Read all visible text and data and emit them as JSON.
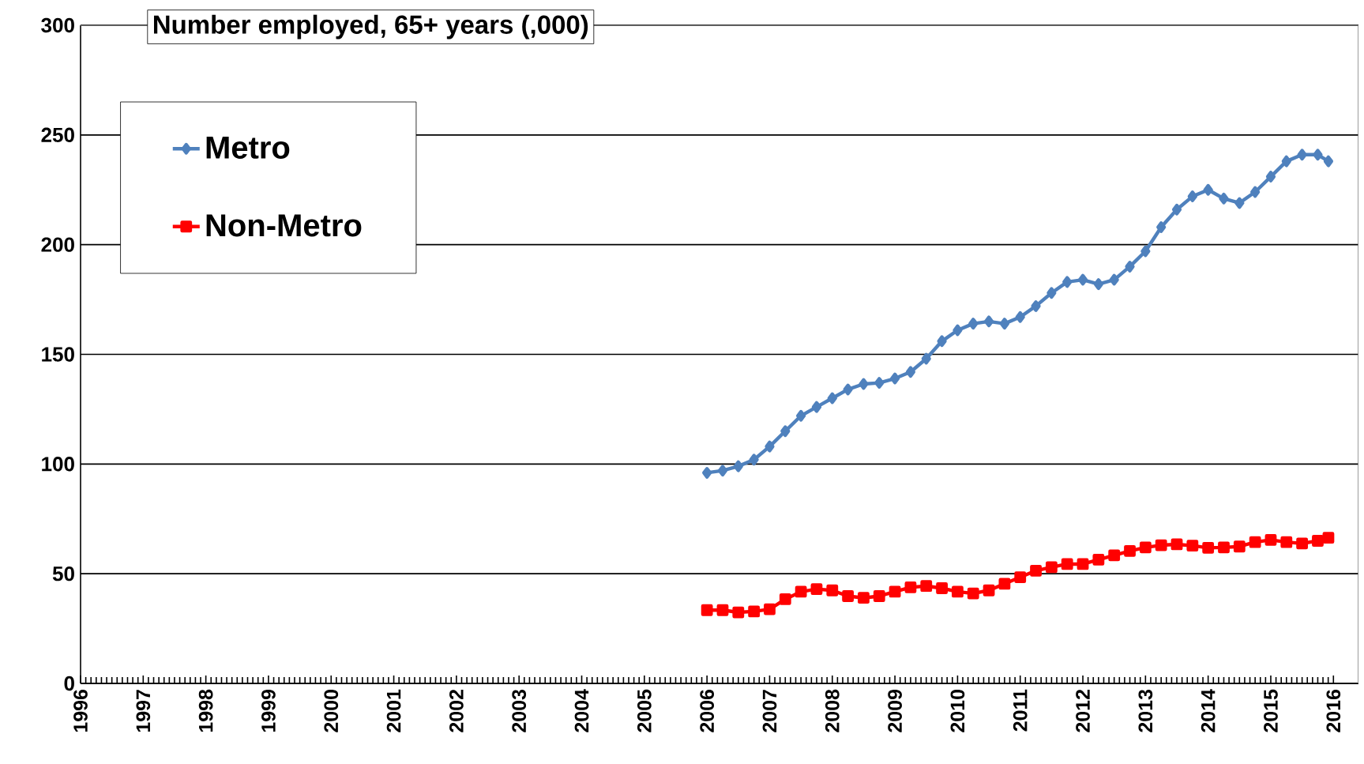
{
  "chart_data": {
    "type": "line",
    "title": "Number employed, 65+ years (,000)",
    "x": [
      2006.0,
      2006.25,
      2006.5,
      2006.75,
      2007.0,
      2007.25,
      2007.5,
      2007.75,
      2008.0,
      2008.25,
      2008.5,
      2008.75,
      2009.0,
      2009.25,
      2009.5,
      2009.75,
      2010.0,
      2010.25,
      2010.5,
      2010.75,
      2011.0,
      2011.25,
      2011.5,
      2011.75,
      2012.0,
      2012.25,
      2012.5,
      2012.75,
      2013.0,
      2013.25,
      2013.5,
      2013.75,
      2014.0,
      2014.25,
      2014.5,
      2014.75,
      2015.0,
      2015.25,
      2015.5,
      2015.75,
      2015.92
    ],
    "series": [
      {
        "name": "Metro",
        "color": "#4f81bd",
        "marker": "diamond",
        "values": [
          96,
          97,
          99,
          102,
          108,
          115,
          122,
          126,
          130,
          134,
          136.5,
          137,
          139,
          142,
          148,
          156,
          161,
          164,
          165,
          164,
          167,
          172,
          178,
          183,
          184,
          182,
          184,
          190,
          197,
          208,
          216,
          222,
          225,
          221,
          219,
          224,
          231,
          238,
          241,
          241,
          238
        ]
      },
      {
        "name": "Non-Metro",
        "color": "#ff0000",
        "marker": "square",
        "values": [
          33.4,
          33.4,
          32.4,
          32.8,
          33.8,
          38.4,
          41.8,
          43,
          42.4,
          39.8,
          39,
          39.8,
          41.8,
          43.8,
          44.4,
          43.4,
          41.8,
          41,
          42.4,
          45.4,
          48.4,
          51.4,
          53,
          54.4,
          54.4,
          56.4,
          58.4,
          60.4,
          62,
          63,
          63.4,
          62.8,
          61.8,
          62,
          62.4,
          64.4,
          65.4,
          64.4,
          63.8,
          65,
          66.4
        ]
      }
    ],
    "xlim": [
      1996,
      2016.4
    ],
    "xticks": [
      1996,
      1997,
      1998,
      1999,
      2000,
      2001,
      2002,
      2003,
      2004,
      2005,
      2006,
      2007,
      2008,
      2009,
      2010,
      2011,
      2012,
      2013,
      2014,
      2015,
      2016
    ],
    "ylim": [
      0,
      300
    ],
    "yticks": [
      0,
      50,
      100,
      150,
      200,
      250,
      300
    ],
    "grid": "y",
    "legend": "top left",
    "line_style": "solid"
  }
}
